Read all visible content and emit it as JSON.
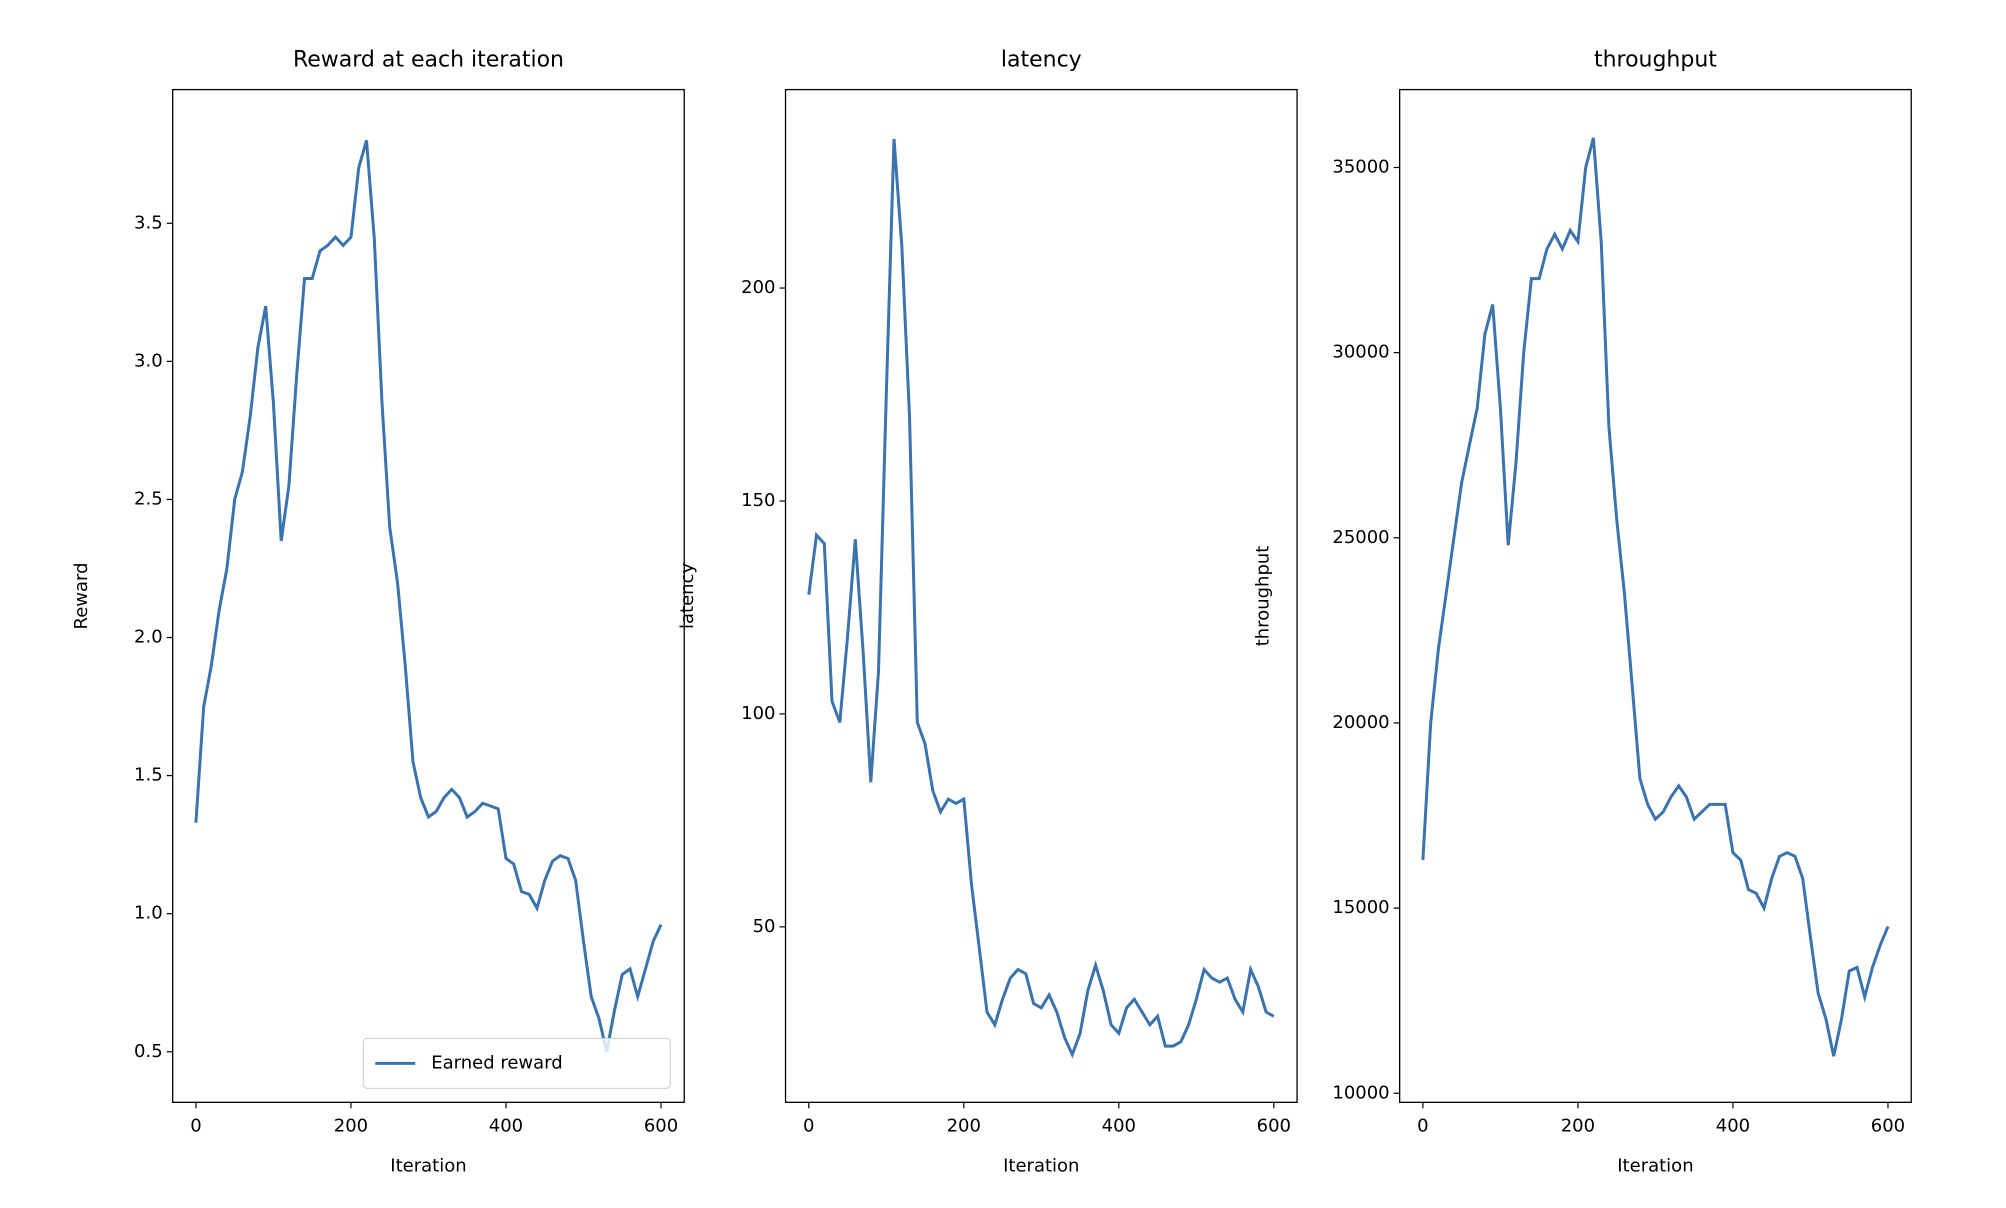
{
  "chart_data": [
    {
      "type": "line",
      "title": "Reward at each iteration",
      "xlabel": "Iteration",
      "ylabel": "Reward",
      "x": [
        0,
        10,
        20,
        30,
        40,
        50,
        60,
        70,
        80,
        90,
        100,
        110,
        120,
        130,
        140,
        150,
        160,
        170,
        180,
        190,
        200,
        210,
        220,
        230,
        240,
        250,
        260,
        270,
        280,
        290,
        300,
        310,
        320,
        330,
        340,
        350,
        360,
        370,
        380,
        390,
        400,
        410,
        420,
        430,
        440,
        450,
        460,
        470,
        480,
        490,
        500,
        510,
        520,
        530,
        540,
        550,
        560,
        570,
        580,
        590,
        600
      ],
      "series": [
        {
          "name": "Earned reward",
          "color": "#3a73ad",
          "values": [
            1.33,
            1.75,
            1.9,
            2.1,
            2.25,
            2.5,
            2.6,
            2.8,
            3.05,
            3.2,
            2.85,
            2.35,
            2.55,
            2.95,
            3.3,
            3.3,
            3.4,
            3.42,
            3.45,
            3.42,
            3.45,
            3.7,
            3.8,
            3.45,
            2.85,
            2.4,
            2.2,
            1.9,
            1.55,
            1.42,
            1.35,
            1.37,
            1.42,
            1.45,
            1.42,
            1.35,
            1.37,
            1.4,
            1.39,
            1.38,
            1.2,
            1.18,
            1.08,
            1.07,
            1.02,
            1.12,
            1.19,
            1.21,
            1.2,
            1.12,
            0.9,
            0.7,
            0.62,
            0.5,
            0.65,
            0.78,
            0.8,
            0.7,
            0.8,
            0.9,
            0.96
          ]
        }
      ],
      "legend": "lower right",
      "xlim": [
        -30,
        630
      ],
      "ylim": [
        0.317,
        3.984
      ],
      "xticks": [
        0,
        200,
        400,
        600
      ],
      "yticks": [
        0.5,
        {
          "value": 1.0,
          "label": "1.0"
        },
        1.5,
        {
          "value": 2.0,
          "label": "2.0"
        },
        2.5,
        {
          "value": 3.0,
          "label": "3.0"
        },
        3.5
      ]
    },
    {
      "type": "line",
      "title": "latency",
      "xlabel": "Iteration",
      "ylabel": "latency",
      "x": [
        0,
        10,
        20,
        30,
        40,
        50,
        60,
        70,
        80,
        90,
        100,
        110,
        120,
        130,
        140,
        150,
        160,
        170,
        180,
        190,
        200,
        210,
        220,
        230,
        240,
        250,
        260,
        270,
        280,
        290,
        300,
        310,
        320,
        330,
        340,
        350,
        360,
        370,
        380,
        390,
        400,
        410,
        420,
        430,
        440,
        450,
        460,
        470,
        480,
        490,
        500,
        510,
        520,
        530,
        540,
        550,
        560,
        570,
        580,
        590,
        600
      ],
      "values": [
        128,
        142,
        140,
        103,
        98,
        118,
        141,
        115,
        84,
        110,
        175,
        235,
        210,
        170,
        98,
        93,
        82,
        77,
        80,
        79,
        80,
        60,
        45,
        30,
        27,
        33,
        38,
        40,
        39,
        32,
        31,
        34,
        30,
        24,
        20,
        25,
        35,
        41,
        35,
        27,
        25,
        31,
        33,
        30,
        27,
        29,
        22,
        22,
        23,
        27,
        33,
        40,
        38,
        37,
        38,
        33,
        30,
        40,
        36,
        30,
        29
      ],
      "color": "#3a73ad",
      "xlim": [
        -30,
        630
      ],
      "ylim": [
        8.8,
        246.6
      ],
      "xticks": [
        0,
        200,
        400,
        600
      ],
      "yticks": [
        50,
        100,
        150,
        200
      ]
    },
    {
      "type": "line",
      "title": "throughput",
      "xlabel": "Iteration",
      "ylabel": "throughput",
      "x": [
        0,
        10,
        20,
        30,
        40,
        50,
        60,
        70,
        80,
        90,
        100,
        110,
        120,
        130,
        140,
        150,
        160,
        170,
        180,
        190,
        200,
        210,
        220,
        230,
        240,
        250,
        260,
        270,
        280,
        290,
        300,
        310,
        320,
        330,
        340,
        350,
        360,
        370,
        380,
        390,
        400,
        410,
        420,
        430,
        440,
        450,
        460,
        470,
        480,
        490,
        500,
        510,
        520,
        530,
        540,
        550,
        560,
        570,
        580,
        590,
        600
      ],
      "values": [
        16300,
        20000,
        22000,
        23500,
        25000,
        26500,
        27500,
        28500,
        30500,
        31300,
        28500,
        24800,
        27000,
        30000,
        32000,
        32000,
        32800,
        33200,
        32800,
        33300,
        33000,
        35000,
        35800,
        33000,
        28000,
        25500,
        23500,
        21000,
        18500,
        17800,
        17400,
        17600,
        18000,
        18300,
        18000,
        17400,
        17600,
        17800,
        17800,
        17800,
        16500,
        16300,
        15500,
        15400,
        15000,
        15800,
        16400,
        16500,
        16400,
        15800,
        14200,
        12700,
        12000,
        11000,
        12000,
        13300,
        13400,
        12600,
        13400,
        14000,
        14500
      ],
      "color": "#3a73ad",
      "xlim": [
        -30,
        630
      ],
      "ylim": [
        9755,
        37104
      ],
      "xticks": [
        0,
        200,
        400,
        600
      ],
      "yticks": [
        10000,
        15000,
        20000,
        25000,
        30000,
        35000
      ]
    }
  ]
}
